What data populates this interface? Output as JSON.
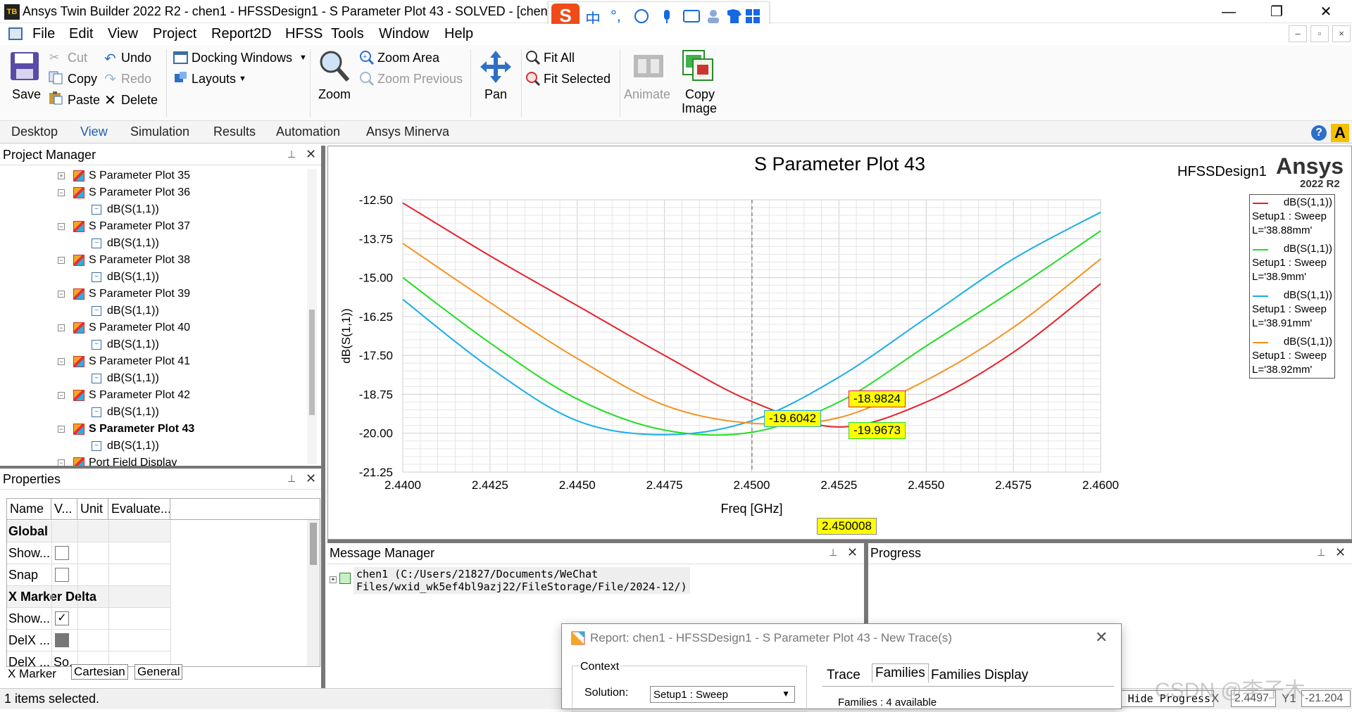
{
  "window": {
    "title": "Ansys Twin Builder 2022 R2 - chen1 - HFSSDesign1 - S Parameter Plot 43 - SOLVED - [chen1 - H",
    "min_glyph": "—",
    "max_glyph": "❐",
    "close_glyph": "✕"
  },
  "ime": {
    "logo": "S",
    "zh": "中",
    "punct": "°,"
  },
  "menu": [
    "File",
    "Edit",
    "View",
    "Project",
    "Report2D",
    "HFSS",
    "Tools",
    "Window",
    "Help"
  ],
  "ribbon": {
    "save": "Save",
    "cut": "Cut",
    "copy": "Copy",
    "paste": "Paste",
    "undo": "Undo",
    "redo": "Redo",
    "delete": "Delete",
    "docking": "Docking Windows",
    "layouts": "Layouts",
    "zoom": "Zoom",
    "zoom_area": "Zoom Area",
    "zoom_previous": "Zoom Previous",
    "pan": "Pan",
    "fit_all": "Fit All",
    "fit_selected": "Fit Selected",
    "animate": "Animate",
    "copy_image_1": "Copy",
    "copy_image_2": "Image"
  },
  "tabs": [
    "Desktop",
    "View",
    "Simulation",
    "Results",
    "Automation",
    "Ansys Minerva"
  ],
  "project_manager": {
    "title": "Project Manager",
    "items": [
      {
        "label": "S Parameter Plot 35",
        "type": "plot"
      },
      {
        "label": "S Parameter Plot 36",
        "type": "plot"
      },
      {
        "label": "dB(S(1,1))",
        "type": "trace"
      },
      {
        "label": "S Parameter Plot 37",
        "type": "plot"
      },
      {
        "label": "dB(S(1,1))",
        "type": "trace"
      },
      {
        "label": "S Parameter Plot 38",
        "type": "plot"
      },
      {
        "label": "dB(S(1,1))",
        "type": "trace"
      },
      {
        "label": "S Parameter Plot 39",
        "type": "plot"
      },
      {
        "label": "dB(S(1,1))",
        "type": "trace"
      },
      {
        "label": "S Parameter Plot 40",
        "type": "plot"
      },
      {
        "label": "dB(S(1,1))",
        "type": "trace"
      },
      {
        "label": "S Parameter Plot 41",
        "type": "plot"
      },
      {
        "label": "dB(S(1,1))",
        "type": "trace"
      },
      {
        "label": "S Parameter Plot 42",
        "type": "plot"
      },
      {
        "label": "dB(S(1,1))",
        "type": "trace"
      },
      {
        "label": "S Parameter Plot 43",
        "type": "plot"
      },
      {
        "label": "dB(S(1,1))",
        "type": "trace"
      },
      {
        "label": "Port Field Display",
        "type": "plot"
      }
    ]
  },
  "properties": {
    "title": "Properties",
    "headers": [
      "Name",
      "V...",
      "Unit",
      "Evaluate..."
    ],
    "sections": {
      "global": "Global",
      "xmarker": "X Marker Delta"
    },
    "rows": {
      "show1": "Show...",
      "snap": "Snap",
      "show2": "Show...",
      "delx1": "DelX ...",
      "delx2": "DelX ...",
      "delx2_val": "So..."
    },
    "tabs": [
      "X Marker",
      "Cartesian",
      "General"
    ]
  },
  "status": {
    "text": "1 items selected."
  },
  "plot": {
    "title": "S Parameter Plot 43",
    "design": "HFSSDesign1",
    "brand": "Ansys",
    "version": "2022 R2",
    "marker_x_label": "2.450008",
    "markers": [
      "-18.9824",
      "-19.6042",
      "-19.9673"
    ]
  },
  "chart_data": {
    "type": "line",
    "title": "S Parameter Plot 43",
    "xlabel": "Freq [GHz]",
    "ylabel": "dB(S(1,1))",
    "xlim": [
      2.44,
      2.46
    ],
    "ylim": [
      -21.25,
      -12.5
    ],
    "x_ticks": [
      "2.4400",
      "2.4425",
      "2.4450",
      "2.4475",
      "2.4500",
      "2.4525",
      "2.4550",
      "2.4575",
      "2.4600"
    ],
    "y_ticks": [
      "-12.50",
      "-13.75",
      "-15.00",
      "-16.25",
      "-17.50",
      "-18.75",
      "-20.00",
      "-21.25"
    ],
    "grid": true,
    "legend_position": "top-right",
    "x": [
      2.44,
      2.4425,
      2.445,
      2.4475,
      2.45,
      2.4525,
      2.455,
      2.4575,
      2.46
    ],
    "series": [
      {
        "name": "dB(S(1,1))",
        "sub": "Setup1 : Sweep",
        "param": "L='38.88mm'",
        "color": "#e8202a",
        "values": [
          -12.6,
          -14.3,
          -15.9,
          -17.5,
          -18.98,
          -19.8,
          -19.0,
          -17.4,
          -15.2
        ]
      },
      {
        "name": "dB(S(1,1))",
        "sub": "Setup1 : Sweep",
        "param": "L='38.9mm'",
        "color": "#22dd22",
        "values": [
          -15.0,
          -17.1,
          -18.9,
          -19.9,
          -19.97,
          -19.0,
          -17.2,
          -15.4,
          -13.5
        ]
      },
      {
        "name": "dB(S(1,1))",
        "sub": "Setup1 : Sweep",
        "param": "L='38.91mm'",
        "color": "#1aaee8",
        "values": [
          -15.7,
          -17.9,
          -19.6,
          -20.05,
          -19.6,
          -18.2,
          -16.3,
          -14.4,
          -12.9
        ]
      },
      {
        "name": "dB(S(1,1))",
        "sub": "Setup1 : Sweep",
        "param": "L='38.92mm'",
        "color": "#f5921e",
        "values": [
          -13.9,
          -15.8,
          -17.6,
          -19.1,
          -19.68,
          -19.5,
          -18.3,
          -16.6,
          -14.4
        ]
      }
    ]
  },
  "message_manager": {
    "title": "Message Manager",
    "line1": "chen1 (C:/Users/21827/Documents/WeChat",
    "line2": "Files/wxid_wk5ef4bl9azj22/FileStorage/File/2024-12/)"
  },
  "progress": {
    "title": "Progress",
    "hide_btn": "Hide Progress",
    "x_label": "X",
    "x_val": "2.4497",
    "y_label": "Y1",
    "y_val": "-21.204"
  },
  "dialog": {
    "title": "Report: chen1 - HFSSDesign1 - S Parameter Plot 43 - New Trace(s)",
    "context": "Context",
    "solution_label": "Solution:",
    "solution_value": "Setup1 : Sweep",
    "tabs": [
      "Trace",
      "Families",
      "Families Display"
    ],
    "families": "Families : 4 available"
  },
  "watermark": "CSDN @李子木"
}
